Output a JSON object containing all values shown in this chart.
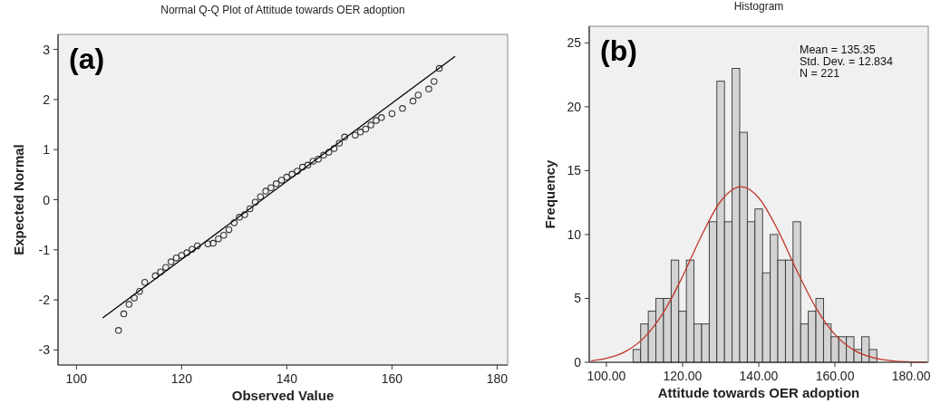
{
  "chart_data": [
    {
      "type": "scatter",
      "title": "Normal Q-Q Plot of Attitude towards OER adoption",
      "xlabel": "Observed Value",
      "ylabel": "Expected Normal",
      "annotations": [
        "(a)"
      ],
      "xlim": [
        96.5,
        182
      ],
      "ylim": [
        -3.3,
        3.3
      ],
      "xticks": [
        100,
        120,
        140,
        160,
        180
      ],
      "yticks": [
        -3,
        -2,
        -1,
        0,
        1,
        2,
        3
      ],
      "series": [
        {
          "type": "scatter",
          "marker": "circle",
          "color": "#333333",
          "x": [
            108,
            109,
            110,
            111,
            112,
            113,
            115,
            116,
            117,
            118,
            119,
            120,
            121,
            122,
            123,
            125,
            126,
            127,
            128,
            129,
            130,
            131,
            132,
            133,
            134,
            135,
            136,
            137,
            138,
            139,
            140,
            141,
            142,
            143,
            144,
            145,
            146,
            147,
            148,
            149,
            150,
            151,
            153,
            154,
            155,
            156,
            157,
            158,
            160,
            162,
            164,
            165,
            167,
            168,
            169
          ],
          "values": [
            -2.61,
            -2.28,
            -2.09,
            -1.96,
            -1.83,
            -1.65,
            -1.52,
            -1.44,
            -1.35,
            -1.24,
            -1.16,
            -1.11,
            -1.06,
            -0.99,
            -0.92,
            -0.88,
            -0.87,
            -0.78,
            -0.71,
            -0.6,
            -0.46,
            -0.35,
            -0.3,
            -0.18,
            -0.05,
            0.06,
            0.17,
            0.24,
            0.32,
            0.39,
            0.45,
            0.51,
            0.57,
            0.65,
            0.69,
            0.77,
            0.81,
            0.89,
            0.95,
            1.02,
            1.13,
            1.25,
            1.29,
            1.35,
            1.41,
            1.49,
            1.58,
            1.64,
            1.72,
            1.82,
            1.97,
            2.09,
            2.21,
            2.36,
            2.62
          ]
        },
        {
          "type": "line",
          "color": "#000000",
          "x": [
            105,
            172
          ],
          "values": [
            -2.36,
            2.86
          ]
        }
      ]
    },
    {
      "type": "histogram",
      "title": "Histogram",
      "xlabel": "Attitude towards OER adoption",
      "ylabel": "Frequency",
      "annotations": [
        "(b)",
        "Mean = 135.35",
        "Std. Dev. = 12.834",
        "N = 221"
      ],
      "xlim": [
        95.5,
        184.5
      ],
      "ylim": [
        0,
        26.3
      ],
      "xticks": [
        {
          "value": 100,
          "label": "100.00"
        },
        {
          "value": 120,
          "label": "120.00"
        },
        {
          "value": 140,
          "label": "140.00"
        },
        {
          "value": 160,
          "label": "160.00"
        },
        {
          "value": 180,
          "label": "180.00"
        }
      ],
      "yticks": [
        0,
        5,
        10,
        15,
        20,
        25
      ],
      "color": "#d3d3d3",
      "bins": [
        107,
        109,
        111,
        113,
        115,
        117,
        119,
        121,
        123,
        125,
        127,
        129,
        131,
        133,
        135,
        137,
        139,
        141,
        143,
        145,
        147,
        149,
        151,
        153,
        155,
        157,
        159,
        161,
        163,
        165,
        167,
        169,
        171
      ],
      "values": [
        1,
        3,
        4,
        5,
        5,
        8,
        4,
        8,
        3,
        3,
        11,
        22,
        11,
        23,
        18,
        11,
        12,
        7,
        10,
        8,
        8,
        11,
        3,
        4,
        5,
        3,
        2,
        2,
        2,
        1,
        2,
        1
      ],
      "series": [
        {
          "type": "line",
          "color": "#c0392b",
          "x": [
            96,
            100,
            105,
            110,
            115,
            120,
            125,
            130,
            135.35,
            140,
            145,
            150,
            155,
            160,
            165,
            170,
            175,
            180,
            184
          ],
          "values": [
            0.12,
            0.31,
            0.84,
            1.96,
            3.91,
            6.72,
            9.93,
            12.6,
            13.74,
            12.87,
            10.36,
            7.17,
            4.26,
            2.17,
            0.95,
            0.36,
            0.12,
            0.03,
            0.01
          ]
        }
      ]
    }
  ]
}
